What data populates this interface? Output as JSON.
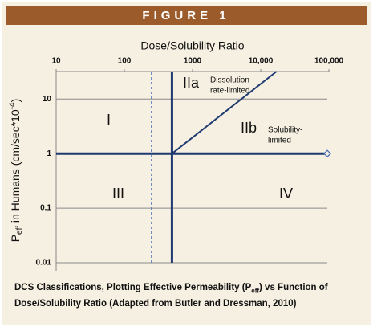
{
  "chart_data": {
    "type": "line",
    "label": "FIGURE 1",
    "title": "Dose/Solubility Ratio",
    "y_label": [
      "P",
      "eff",
      " in Humans (cm/sec*10",
      "-4",
      ")"
    ],
    "caption": [
      "DCS Classifications, Plotting Effective Permeability (P",
      "eff",
      ") vs Function of Dose/Solubility Ratio (Adapted from Butler and Dressman, 2010)"
    ],
    "x_scale": "log",
    "y_scale": "log",
    "xlim": [
      10,
      100000
    ],
    "xticks": [
      10,
      100,
      1000,
      {
        "value": 10000,
        "label": "10,000"
      },
      {
        "value": 100000,
        "label": "100,000"
      }
    ],
    "ylim": [
      0.01,
      32
    ],
    "yticks": [
      0.01,
      0.1,
      1,
      10
    ],
    "grid": true,
    "series": [
      {
        "color": "#1f3a70",
        "width": 3,
        "x": [
          10,
          100000
        ],
        "values": [
          1,
          1
        ],
        "end_marker": "diamond"
      },
      {
        "color": "#1f3a70",
        "width": 3,
        "x": [
          500,
          500
        ],
        "values": [
          0.01,
          32
        ]
      },
      {
        "color": "#1f3a70",
        "width": 2,
        "x": [
          500,
          17000
        ],
        "values": [
          1,
          32
        ]
      },
      {
        "color": "#4a70b8",
        "width": 1.2,
        "dash": true,
        "x": [
          250,
          250
        ],
        "values": [
          0.01,
          32
        ]
      }
    ],
    "annotations": [
      "I",
      "IIa",
      "IIb",
      "III",
      "IV",
      "Dissolution-",
      "rate-limited",
      "Solubility-",
      "limited"
    ]
  }
}
